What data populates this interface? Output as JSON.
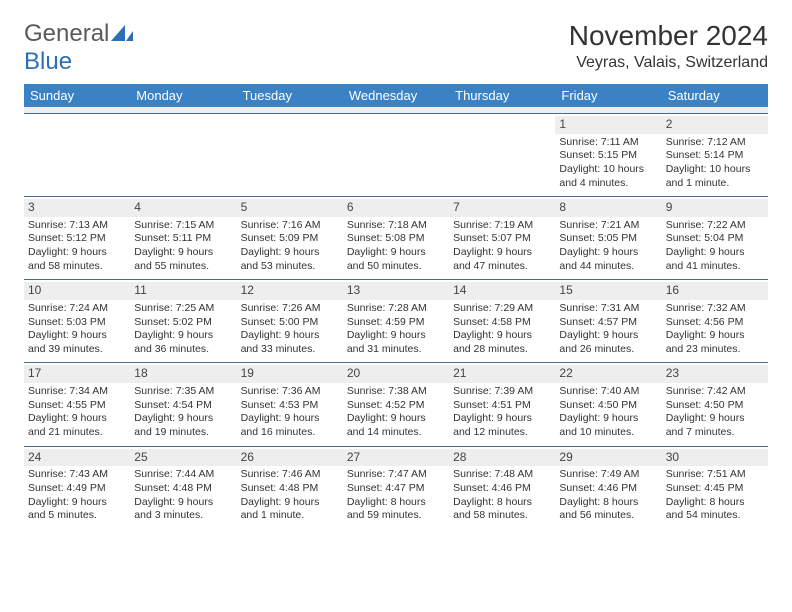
{
  "brand": {
    "part1": "General",
    "part2": "Blue"
  },
  "title": "November 2024",
  "location": "Veyras, Valais, Switzerland",
  "day_headers": [
    "Sunday",
    "Monday",
    "Tuesday",
    "Wednesday",
    "Thursday",
    "Friday",
    "Saturday"
  ],
  "colors": {
    "header_bg": "#3b82c4",
    "header_text": "#ffffff",
    "daynum_bg": "#eeeeee",
    "week_border": "#4a6a8a",
    "text": "#333333",
    "logo_gray": "#5a5a5a",
    "logo_blue": "#2d6fb5"
  },
  "weeks": [
    [
      {
        "n": "",
        "sr": "",
        "ss": "",
        "dl": ""
      },
      {
        "n": "",
        "sr": "",
        "ss": "",
        "dl": ""
      },
      {
        "n": "",
        "sr": "",
        "ss": "",
        "dl": ""
      },
      {
        "n": "",
        "sr": "",
        "ss": "",
        "dl": ""
      },
      {
        "n": "",
        "sr": "",
        "ss": "",
        "dl": ""
      },
      {
        "n": "1",
        "sr": "Sunrise: 7:11 AM",
        "ss": "Sunset: 5:15 PM",
        "dl": "Daylight: 10 hours and 4 minutes."
      },
      {
        "n": "2",
        "sr": "Sunrise: 7:12 AM",
        "ss": "Sunset: 5:14 PM",
        "dl": "Daylight: 10 hours and 1 minute."
      }
    ],
    [
      {
        "n": "3",
        "sr": "Sunrise: 7:13 AM",
        "ss": "Sunset: 5:12 PM",
        "dl": "Daylight: 9 hours and 58 minutes."
      },
      {
        "n": "4",
        "sr": "Sunrise: 7:15 AM",
        "ss": "Sunset: 5:11 PM",
        "dl": "Daylight: 9 hours and 55 minutes."
      },
      {
        "n": "5",
        "sr": "Sunrise: 7:16 AM",
        "ss": "Sunset: 5:09 PM",
        "dl": "Daylight: 9 hours and 53 minutes."
      },
      {
        "n": "6",
        "sr": "Sunrise: 7:18 AM",
        "ss": "Sunset: 5:08 PM",
        "dl": "Daylight: 9 hours and 50 minutes."
      },
      {
        "n": "7",
        "sr": "Sunrise: 7:19 AM",
        "ss": "Sunset: 5:07 PM",
        "dl": "Daylight: 9 hours and 47 minutes."
      },
      {
        "n": "8",
        "sr": "Sunrise: 7:21 AM",
        "ss": "Sunset: 5:05 PM",
        "dl": "Daylight: 9 hours and 44 minutes."
      },
      {
        "n": "9",
        "sr": "Sunrise: 7:22 AM",
        "ss": "Sunset: 5:04 PM",
        "dl": "Daylight: 9 hours and 41 minutes."
      }
    ],
    [
      {
        "n": "10",
        "sr": "Sunrise: 7:24 AM",
        "ss": "Sunset: 5:03 PM",
        "dl": "Daylight: 9 hours and 39 minutes."
      },
      {
        "n": "11",
        "sr": "Sunrise: 7:25 AM",
        "ss": "Sunset: 5:02 PM",
        "dl": "Daylight: 9 hours and 36 minutes."
      },
      {
        "n": "12",
        "sr": "Sunrise: 7:26 AM",
        "ss": "Sunset: 5:00 PM",
        "dl": "Daylight: 9 hours and 33 minutes."
      },
      {
        "n": "13",
        "sr": "Sunrise: 7:28 AM",
        "ss": "Sunset: 4:59 PM",
        "dl": "Daylight: 9 hours and 31 minutes."
      },
      {
        "n": "14",
        "sr": "Sunrise: 7:29 AM",
        "ss": "Sunset: 4:58 PM",
        "dl": "Daylight: 9 hours and 28 minutes."
      },
      {
        "n": "15",
        "sr": "Sunrise: 7:31 AM",
        "ss": "Sunset: 4:57 PM",
        "dl": "Daylight: 9 hours and 26 minutes."
      },
      {
        "n": "16",
        "sr": "Sunrise: 7:32 AM",
        "ss": "Sunset: 4:56 PM",
        "dl": "Daylight: 9 hours and 23 minutes."
      }
    ],
    [
      {
        "n": "17",
        "sr": "Sunrise: 7:34 AM",
        "ss": "Sunset: 4:55 PM",
        "dl": "Daylight: 9 hours and 21 minutes."
      },
      {
        "n": "18",
        "sr": "Sunrise: 7:35 AM",
        "ss": "Sunset: 4:54 PM",
        "dl": "Daylight: 9 hours and 19 minutes."
      },
      {
        "n": "19",
        "sr": "Sunrise: 7:36 AM",
        "ss": "Sunset: 4:53 PM",
        "dl": "Daylight: 9 hours and 16 minutes."
      },
      {
        "n": "20",
        "sr": "Sunrise: 7:38 AM",
        "ss": "Sunset: 4:52 PM",
        "dl": "Daylight: 9 hours and 14 minutes."
      },
      {
        "n": "21",
        "sr": "Sunrise: 7:39 AM",
        "ss": "Sunset: 4:51 PM",
        "dl": "Daylight: 9 hours and 12 minutes."
      },
      {
        "n": "22",
        "sr": "Sunrise: 7:40 AM",
        "ss": "Sunset: 4:50 PM",
        "dl": "Daylight: 9 hours and 10 minutes."
      },
      {
        "n": "23",
        "sr": "Sunrise: 7:42 AM",
        "ss": "Sunset: 4:50 PM",
        "dl": "Daylight: 9 hours and 7 minutes."
      }
    ],
    [
      {
        "n": "24",
        "sr": "Sunrise: 7:43 AM",
        "ss": "Sunset: 4:49 PM",
        "dl": "Daylight: 9 hours and 5 minutes."
      },
      {
        "n": "25",
        "sr": "Sunrise: 7:44 AM",
        "ss": "Sunset: 4:48 PM",
        "dl": "Daylight: 9 hours and 3 minutes."
      },
      {
        "n": "26",
        "sr": "Sunrise: 7:46 AM",
        "ss": "Sunset: 4:48 PM",
        "dl": "Daylight: 9 hours and 1 minute."
      },
      {
        "n": "27",
        "sr": "Sunrise: 7:47 AM",
        "ss": "Sunset: 4:47 PM",
        "dl": "Daylight: 8 hours and 59 minutes."
      },
      {
        "n": "28",
        "sr": "Sunrise: 7:48 AM",
        "ss": "Sunset: 4:46 PM",
        "dl": "Daylight: 8 hours and 58 minutes."
      },
      {
        "n": "29",
        "sr": "Sunrise: 7:49 AM",
        "ss": "Sunset: 4:46 PM",
        "dl": "Daylight: 8 hours and 56 minutes."
      },
      {
        "n": "30",
        "sr": "Sunrise: 7:51 AM",
        "ss": "Sunset: 4:45 PM",
        "dl": "Daylight: 8 hours and 54 minutes."
      }
    ]
  ]
}
